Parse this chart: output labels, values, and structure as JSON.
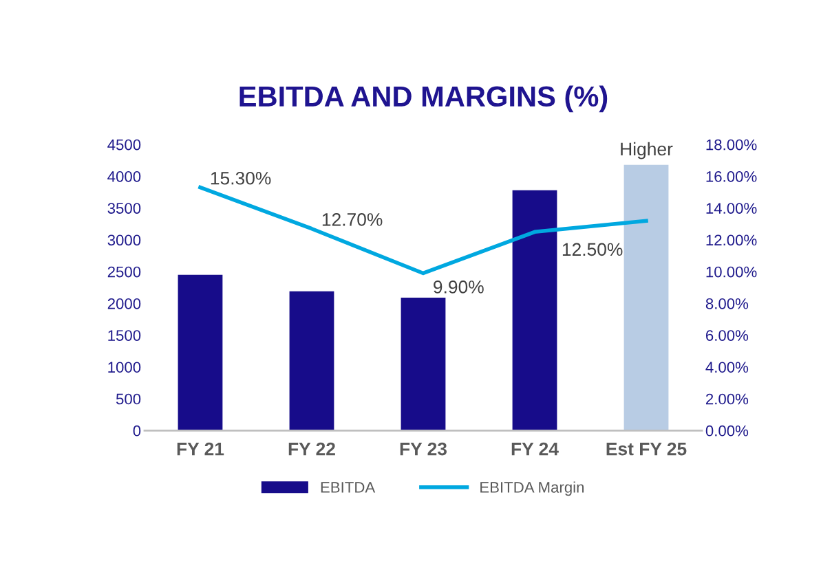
{
  "chart_data": {
    "type": "bar",
    "title": "EBITDA AND MARGINS (%)",
    "categories": [
      "FY 21",
      "FY 22",
      "FY 23",
      "FY 24",
      "Est FY 25"
    ],
    "series": [
      {
        "name": "EBITDA",
        "color": "#170c8a",
        "colors": [
          "#170c8a",
          "#170c8a",
          "#170c8a",
          "#170c8a",
          "#b8cce4"
        ],
        "values": [
          2450,
          2190,
          2090,
          3780,
          4180
        ],
        "value_labels": [
          null,
          null,
          null,
          null,
          "Higher"
        ]
      },
      {
        "name": "EBITDA Margin",
        "type": "line",
        "axis": "y2",
        "color": "#00a8e0",
        "values": [
          15.3,
          12.7,
          9.9,
          12.5,
          13.2
        ],
        "value_labels": [
          "15.30%",
          "12.70%",
          "9.90%",
          "12.50%",
          null
        ]
      }
    ],
    "ylim": [
      0,
      4500
    ],
    "yticks": [
      0,
      500,
      1000,
      1500,
      2000,
      2500,
      3000,
      3500,
      4000,
      4500
    ],
    "y2lim": [
      0,
      18
    ],
    "y2ticks": [
      {
        "value": 0,
        "label": "0.00%"
      },
      {
        "value": 2,
        "label": "2.00%"
      },
      {
        "value": 4,
        "label": "4.00%"
      },
      {
        "value": 6,
        "label": "6.00%"
      },
      {
        "value": 8,
        "label": "8.00%"
      },
      {
        "value": 10,
        "label": "10.00%"
      },
      {
        "value": 12,
        "label": "12.00%"
      },
      {
        "value": 14,
        "label": "14.00%"
      },
      {
        "value": 16,
        "label": "16.00%"
      },
      {
        "value": 18,
        "label": "18.00%"
      }
    ],
    "grid": false,
    "legend": "bottom",
    "marker": "none",
    "line_style": "solid"
  }
}
